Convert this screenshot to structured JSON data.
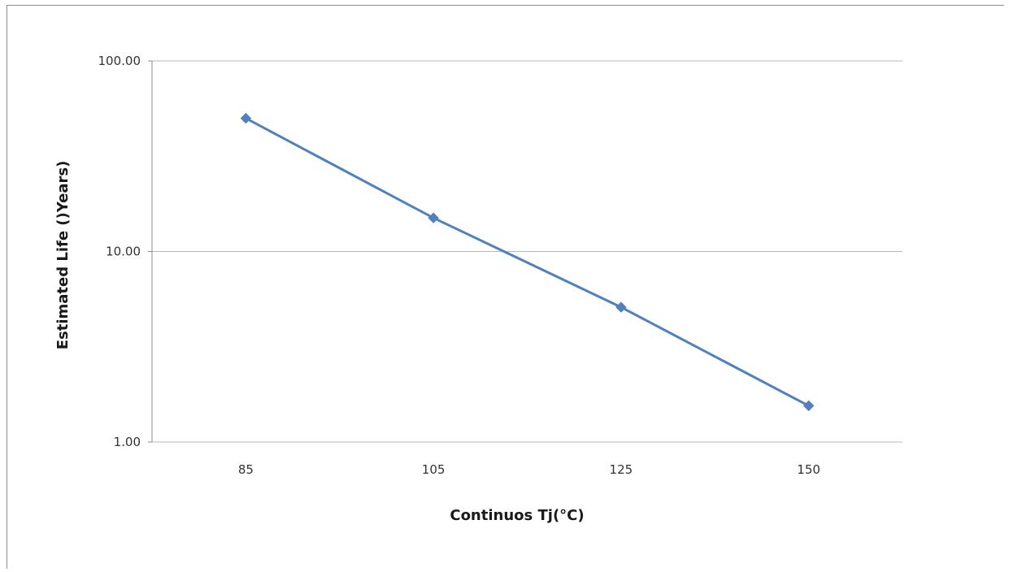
{
  "chart_data": {
    "type": "line",
    "title": "",
    "xlabel": "Continuos Tj(°C)",
    "ylabel": "Estimated Life  ()Years)",
    "categories": [
      "85",
      "105",
      "125",
      "150"
    ],
    "series": [
      {
        "values": [
          50,
          15,
          5.1,
          1.55
        ],
        "color": "#4f81bd",
        "marker": "diamond"
      }
    ],
    "y_scale": "log",
    "ylim": [
      1,
      100
    ],
    "y_ticks": [
      1,
      10,
      100
    ],
    "y_tick_labels": [
      "1.00",
      "10.00",
      "100.00"
    ],
    "grid": "horizontal major",
    "legend": "none"
  }
}
